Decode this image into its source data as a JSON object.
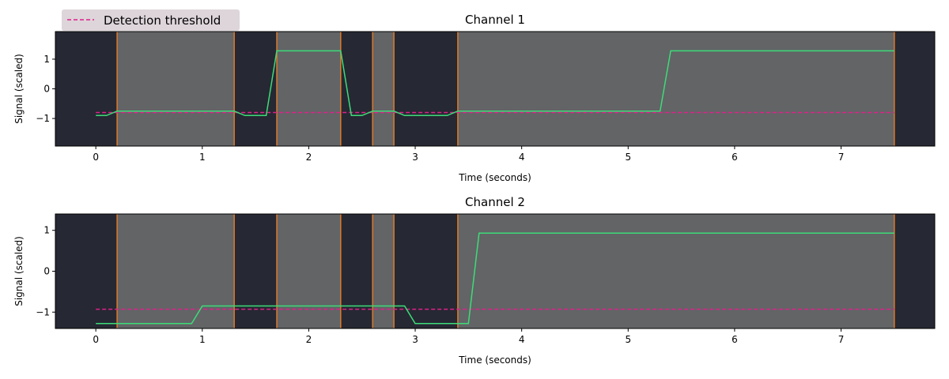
{
  "colors": {
    "background_dark": "#262833",
    "active_fill": "#626466",
    "active_edge": "#dd7a2c",
    "signal": "#3ddc78",
    "threshold": "#e0208a",
    "legend_bg": "#ddd5da"
  },
  "legend": {
    "threshold_label": "Detection threshold",
    "placement": "top-left"
  },
  "chart_data": [
    {
      "type": "line",
      "title": "Channel 1",
      "xlabel": "Time (seconds)",
      "ylabel": "Signal (scaled)",
      "xlim": [
        -0.38,
        7.88
      ],
      "ylim": [
        -1.93,
        1.93
      ],
      "x_ticks": [
        0,
        1,
        2,
        3,
        4,
        5,
        6,
        7
      ],
      "y_ticks": [
        -1,
        0,
        1
      ],
      "active_intervals": [
        [
          0.2,
          1.3
        ],
        [
          1.7,
          2.3
        ],
        [
          2.6,
          2.8
        ],
        [
          3.4,
          7.5
        ]
      ],
      "threshold": {
        "name": "Detection threshold",
        "value": -0.8,
        "x_range": [
          0,
          7.5
        ]
      },
      "series": [
        {
          "x": [
            0,
            0.1,
            0.2,
            1.3,
            1.4,
            1.6,
            1.7,
            2.3,
            2.4,
            2.5,
            2.6,
            2.8,
            2.9,
            3.3,
            3.4,
            5.3,
            5.4,
            7.5
          ],
          "y": [
            -0.9,
            -0.9,
            -0.75,
            -0.75,
            -0.9,
            -0.9,
            1.28,
            1.28,
            -0.9,
            -0.9,
            -0.75,
            -0.75,
            -0.9,
            -0.9,
            -0.75,
            -0.75,
            1.28,
            1.28
          ]
        }
      ]
    },
    {
      "type": "line",
      "title": "Channel 2",
      "xlabel": "Time (seconds)",
      "ylabel": "Signal (scaled)",
      "xlim": [
        -0.38,
        7.88
      ],
      "ylim": [
        -1.4,
        1.4
      ],
      "x_ticks": [
        0,
        1,
        2,
        3,
        4,
        5,
        6,
        7
      ],
      "y_ticks": [
        -1,
        0,
        1
      ],
      "active_intervals": [
        [
          0.2,
          1.3
        ],
        [
          1.7,
          2.3
        ],
        [
          2.6,
          2.8
        ],
        [
          3.4,
          7.5
        ]
      ],
      "threshold": {
        "name": "Detection threshold",
        "value": -0.93,
        "x_range": [
          0,
          7.5
        ]
      },
      "series": [
        {
          "x": [
            0,
            0.9,
            1.0,
            2.9,
            3.0,
            3.5,
            3.6,
            7.5
          ],
          "y": [
            -1.28,
            -1.28,
            -0.85,
            -0.85,
            -1.28,
            -1.28,
            0.93,
            0.93
          ]
        }
      ]
    }
  ]
}
